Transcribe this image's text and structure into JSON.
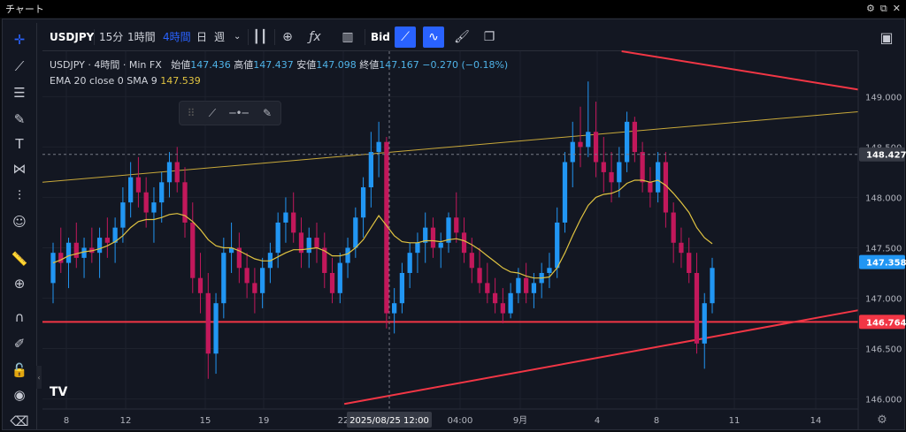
{
  "window": {
    "title": "チャート",
    "controls": [
      "gear-icon",
      "popout-icon",
      "close-icon"
    ]
  },
  "toolbar": {
    "symbol": "USDJPY",
    "intervals": [
      "15分",
      "1時間",
      "4時間",
      "日",
      "週"
    ],
    "active_interval": "4時間",
    "bid_label": "Bid",
    "buttons": [
      "candles-icon",
      "add-indicator-icon",
      "fx-icon",
      "bar-chart-icon",
      "bid-ask-toggle",
      "trend-icon",
      "pulse-icon",
      "brush-icon",
      "copy-icon"
    ]
  },
  "left_tools": [
    "crosshair-icon",
    "trendline-icon",
    "horizontal-lines-icon",
    "brush-icon",
    "text-icon",
    "pattern-icon",
    "fib-icon",
    "emoji-icon",
    "ruler-icon",
    "zoom-icon",
    "magnet-icon",
    "pencil-lock-icon",
    "lock-icon",
    "eye-icon",
    "trash-icon"
  ],
  "legend": {
    "symbol": "USDJPY",
    "interval": "4時間",
    "source": "Min FX",
    "open_label": "始値",
    "open": "147.436",
    "high_label": "高値",
    "high": "147.437",
    "low_label": "安値",
    "low": "147.098",
    "close_label": "終値",
    "close": "147.167",
    "change": "−0.270 (−0.18%)",
    "indicator": "EMA 20 close 0 SMA 9",
    "indicator_value": "147.539"
  },
  "colors": {
    "up": "#089981",
    "bullish_candle": "#2196f3",
    "bearish_candle": "#c2185b",
    "ema": "#e0c341",
    "red_line": "#f23645",
    "accent": "#2962ff",
    "bg": "#131722"
  },
  "chart_data": {
    "type": "candlestick",
    "title": "USDJPY 4時間 Min FX",
    "ylim": [
      145.9,
      149.45
    ],
    "y_ticks": [
      149.0,
      148.5,
      148.0,
      147.5,
      147.0,
      146.5,
      146.0
    ],
    "y_tick_labels": [
      "149.000",
      "148.500",
      "148.000",
      "147.500",
      "147.000",
      "146.500",
      "146.000"
    ],
    "x_tick_labels": [
      "8",
      "12",
      "15",
      "19",
      "22",
      "04:00",
      "9月",
      "4",
      "8",
      "11",
      "14"
    ],
    "crosshair": {
      "x_label": "2025/08/25  12:00",
      "y_label": "148.427",
      "y": 148.427
    },
    "price_labels": [
      {
        "value": 147.358,
        "text": "147.358",
        "color": "#2196f3"
      },
      {
        "value": 146.764,
        "text": "146.764",
        "color": "#f23645"
      }
    ],
    "horizontal_line": {
      "value": 146.764
    },
    "candles": [
      [
        147.15,
        147.55,
        146.95,
        147.45
      ],
      [
        147.45,
        147.7,
        147.25,
        147.35
      ],
      [
        147.35,
        147.6,
        147.1,
        147.55
      ],
      [
        147.55,
        147.75,
        147.3,
        147.4
      ],
      [
        147.4,
        147.6,
        147.2,
        147.5
      ],
      [
        147.5,
        147.7,
        147.35,
        147.45
      ],
      [
        147.45,
        147.7,
        147.2,
        147.6
      ],
      [
        147.6,
        147.8,
        147.4,
        147.55
      ],
      [
        147.55,
        147.8,
        147.35,
        147.7
      ],
      [
        147.7,
        148.1,
        147.55,
        147.95
      ],
      [
        147.95,
        148.35,
        147.8,
        148.2
      ],
      [
        148.2,
        148.4,
        147.9,
        148.05
      ],
      [
        148.05,
        148.2,
        147.7,
        147.85
      ],
      [
        147.85,
        148.1,
        147.55,
        147.95
      ],
      [
        147.95,
        148.25,
        147.75,
        148.15
      ],
      [
        148.15,
        148.45,
        148.0,
        148.35
      ],
      [
        148.35,
        148.5,
        148.05,
        148.15
      ],
      [
        148.15,
        148.3,
        147.6,
        147.75
      ],
      [
        147.75,
        147.95,
        147.05,
        147.2
      ],
      [
        147.2,
        147.45,
        146.85,
        147.05
      ],
      [
        147.05,
        147.25,
        146.2,
        146.45
      ],
      [
        146.45,
        147.05,
        146.25,
        146.95
      ],
      [
        146.95,
        147.6,
        146.8,
        147.45
      ],
      [
        147.45,
        147.75,
        147.25,
        147.5
      ],
      [
        147.5,
        147.65,
        147.15,
        147.3
      ],
      [
        147.3,
        147.45,
        147.0,
        147.15
      ],
      [
        147.15,
        147.3,
        146.85,
        147.05
      ],
      [
        147.05,
        147.4,
        146.9,
        147.3
      ],
      [
        147.3,
        147.55,
        147.15,
        147.45
      ],
      [
        147.45,
        147.85,
        147.3,
        147.75
      ],
      [
        147.75,
        148.0,
        147.55,
        147.85
      ],
      [
        147.85,
        148.05,
        147.55,
        147.65
      ],
      [
        147.65,
        147.8,
        147.3,
        147.45
      ],
      [
        147.45,
        147.7,
        147.3,
        147.6
      ],
      [
        147.6,
        147.75,
        147.35,
        147.5
      ],
      [
        147.5,
        147.65,
        147.1,
        147.25
      ],
      [
        147.25,
        147.4,
        146.95,
        147.05
      ],
      [
        147.05,
        147.45,
        146.95,
        147.35
      ],
      [
        147.35,
        147.6,
        147.2,
        147.5
      ],
      [
        147.5,
        147.9,
        147.4,
        147.8
      ],
      [
        147.8,
        148.2,
        147.6,
        148.1
      ],
      [
        148.1,
        148.65,
        147.9,
        148.45
      ],
      [
        148.45,
        148.75,
        148.2,
        148.55
      ],
      [
        148.55,
        148.6,
        146.7,
        146.85
      ],
      [
        146.85,
        147.1,
        146.65,
        146.95
      ],
      [
        146.95,
        147.35,
        146.85,
        147.25
      ],
      [
        147.25,
        147.55,
        147.1,
        147.45
      ],
      [
        147.45,
        147.65,
        147.25,
        147.55
      ],
      [
        147.55,
        147.85,
        147.35,
        147.7
      ],
      [
        147.7,
        147.8,
        147.4,
        147.5
      ],
      [
        147.5,
        147.65,
        147.3,
        147.55
      ],
      [
        147.55,
        147.85,
        147.45,
        147.8
      ],
      [
        147.8,
        148.05,
        147.55,
        147.65
      ],
      [
        147.65,
        147.8,
        147.35,
        147.45
      ],
      [
        147.45,
        147.6,
        147.15,
        147.3
      ],
      [
        147.3,
        147.5,
        147.05,
        147.15
      ],
      [
        147.15,
        147.35,
        146.95,
        147.05
      ],
      [
        147.05,
        147.2,
        146.85,
        146.95
      ],
      [
        146.95,
        147.1,
        146.75,
        146.85
      ],
      [
        146.85,
        147.15,
        146.8,
        147.05
      ],
      [
        147.05,
        147.3,
        146.95,
        147.2
      ],
      [
        147.2,
        147.35,
        146.95,
        147.05
      ],
      [
        147.05,
        147.25,
        146.9,
        147.15
      ],
      [
        147.15,
        147.35,
        147.0,
        147.25
      ],
      [
        147.25,
        147.45,
        147.1,
        147.3
      ],
      [
        147.3,
        147.9,
        147.2,
        147.75
      ],
      [
        147.75,
        148.45,
        147.65,
        148.35
      ],
      [
        148.35,
        148.75,
        148.1,
        148.55
      ],
      [
        148.55,
        148.9,
        148.3,
        148.5
      ],
      [
        148.5,
        149.15,
        148.4,
        148.65
      ],
      [
        148.65,
        148.95,
        148.2,
        148.35
      ],
      [
        148.35,
        148.6,
        148.05,
        148.25
      ],
      [
        148.25,
        148.45,
        147.95,
        148.15
      ],
      [
        148.15,
        148.5,
        148.0,
        148.35
      ],
      [
        148.35,
        148.85,
        148.25,
        148.75
      ],
      [
        148.75,
        148.8,
        148.35,
        148.45
      ],
      [
        148.45,
        148.55,
        148.05,
        148.15
      ],
      [
        148.15,
        148.3,
        147.9,
        148.05
      ],
      [
        148.05,
        148.45,
        147.95,
        148.35
      ],
      [
        148.35,
        148.45,
        147.7,
        147.85
      ],
      [
        147.85,
        147.95,
        147.35,
        147.55
      ],
      [
        147.55,
        147.7,
        147.3,
        147.45
      ],
      [
        147.45,
        147.6,
        147.15,
        147.25
      ],
      [
        147.25,
        147.45,
        146.45,
        146.55
      ],
      [
        146.55,
        147.05,
        146.3,
        146.95
      ],
      [
        146.95,
        147.4,
        146.85,
        147.3
      ]
    ],
    "ema": [
      147.35,
      147.38,
      147.42,
      147.44,
      147.46,
      147.47,
      147.49,
      147.52,
      147.56,
      147.62,
      147.7,
      147.76,
      147.78,
      147.78,
      147.8,
      147.83,
      147.84,
      147.82,
      147.76,
      147.68,
      147.58,
      147.52,
      147.5,
      147.5,
      147.47,
      147.43,
      147.39,
      147.37,
      147.37,
      147.41,
      147.45,
      147.48,
      147.48,
      147.49,
      147.5,
      147.47,
      147.42,
      147.42,
      147.44,
      147.5,
      147.58,
      147.7,
      147.82,
      147.72,
      147.62,
      147.56,
      147.55,
      147.55,
      147.57,
      147.57,
      147.56,
      147.58,
      147.59,
      147.57,
      147.53,
      147.48,
      147.42,
      147.36,
      147.3,
      147.26,
      147.25,
      147.22,
      147.2,
      147.2,
      147.21,
      147.3,
      147.45,
      147.62,
      147.78,
      147.92,
      148.0,
      148.03,
      148.04,
      148.07,
      148.14,
      148.17,
      148.17,
      148.15,
      148.17,
      148.12,
      148.04,
      147.95,
      147.85,
      147.7,
      147.6,
      147.54
    ],
    "trendlines": [
      {
        "name": "upper-resistance",
        "from": [
          0.71,
          149.45
        ],
        "to": [
          1.0,
          149.07
        ],
        "color": "#f23645"
      },
      {
        "name": "yellow-trend",
        "from": [
          0.0,
          148.15
        ],
        "to": [
          1.0,
          148.85
        ],
        "color": "#c9a93a"
      },
      {
        "name": "rising-support",
        "from": [
          0.37,
          145.95
        ],
        "to": [
          1.0,
          146.88
        ],
        "color": "#f23645"
      }
    ]
  }
}
